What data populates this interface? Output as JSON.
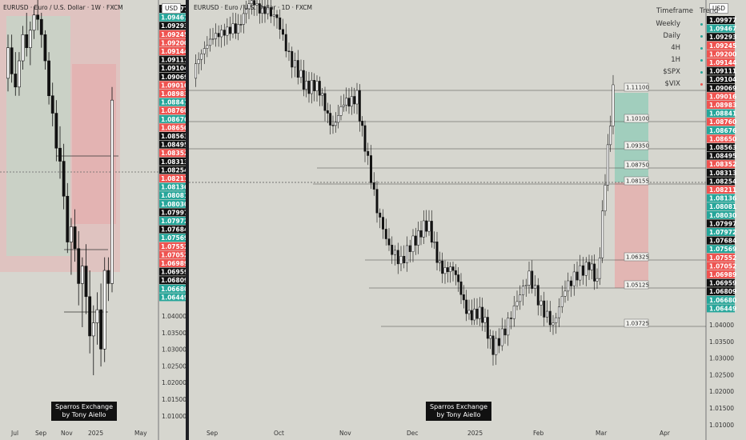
{
  "symbol_left": "EURUSD · Euro / U.S. Dollar · 1W · FXCM",
  "symbol_right": "EURUSD · Euro / U.S. Dollar · 1D · FXCM",
  "currency": "USD",
  "trend_table": {
    "headers": [
      "Timeframe",
      "Trend"
    ],
    "rows": [
      {
        "label": "Weekly",
        "color": "#26a69a"
      },
      {
        "label": "Daily",
        "color": "#26a69a"
      },
      {
        "label": "4H",
        "color": "#26a69a"
      },
      {
        "label": "1H",
        "color": "#26a69a"
      },
      {
        "label": "$SPX",
        "color": "#26a69a"
      },
      {
        "label": "$VIX",
        "color": "#ef5350"
      }
    ]
  },
  "brand": {
    "line1": "Sparros Exchange",
    "line2": "by Tony Aiello"
  },
  "colors": {
    "up": "#26a69a",
    "down": "#ef5350",
    "black": "#111111",
    "bg": "#d6d6cf"
  },
  "chart_data": [
    {
      "type": "candlestick",
      "title": "EURUSD · Euro / U.S. Dollar · 1W · FXCM",
      "x_ticks": [
        "Jul",
        "Sep",
        "Nov",
        "2025",
        "May"
      ],
      "ylim": [
        1.0082,
        1.1009
      ],
      "price_labels": [
        {
          "v": 1.09977,
          "c": "black"
        },
        {
          "v": 1.09467,
          "c": "up"
        },
        {
          "v": 1.09293,
          "c": "black"
        },
        {
          "v": 1.09245,
          "c": "down"
        },
        {
          "v": 1.092,
          "c": "down"
        },
        {
          "v": 1.09144,
          "c": "down"
        },
        {
          "v": 1.09111,
          "c": "black"
        },
        {
          "v": 1.09104,
          "c": "black"
        },
        {
          "v": 1.09069,
          "c": "black"
        },
        {
          "v": 1.09016,
          "c": "down"
        },
        {
          "v": 1.08983,
          "c": "down"
        },
        {
          "v": 1.08841,
          "c": "up"
        },
        {
          "v": 1.0876,
          "c": "down"
        },
        {
          "v": 1.08676,
          "c": "up"
        },
        {
          "v": 1.0865,
          "c": "down"
        },
        {
          "v": 1.08563,
          "c": "black"
        },
        {
          "v": 1.08495,
          "c": "black"
        },
        {
          "v": 1.08352,
          "c": "down"
        },
        {
          "v": 1.08313,
          "c": "black"
        },
        {
          "v": 1.08254,
          "c": "black"
        },
        {
          "v": 1.08211,
          "c": "down"
        },
        {
          "v": 1.08136,
          "c": "up"
        },
        {
          "v": 1.08081,
          "c": "up"
        },
        {
          "v": 1.0803,
          "c": "up"
        },
        {
          "v": 1.07997,
          "c": "black"
        },
        {
          "v": 1.07972,
          "c": "up"
        },
        {
          "v": 1.07684,
          "c": "black"
        },
        {
          "v": 1.07569,
          "c": "up"
        },
        {
          "v": 1.07552,
          "c": "down"
        },
        {
          "v": 1.07052,
          "c": "down"
        },
        {
          "v": 1.06989,
          "c": "down"
        },
        {
          "v": 1.06959,
          "c": "black"
        },
        {
          "v": 1.06809,
          "c": "black"
        },
        {
          "v": 1.0668,
          "c": "up"
        },
        {
          "v": 1.06449,
          "c": "up"
        }
      ],
      "axis_ticks": [
        "1.04000",
        "1.03500",
        "1.03000",
        "1.02500",
        "1.02000",
        "1.01500",
        "1.01000"
      ],
      "candles": [
        [
          1.087,
          1.097,
          1.084,
          1.094
        ],
        [
          1.094,
          1.097,
          1.086,
          1.088
        ],
        [
          1.088,
          1.093,
          1.083,
          1.085
        ],
        [
          1.085,
          1.093,
          1.083,
          1.091
        ],
        [
          1.091,
          1.099,
          1.089,
          1.097
        ],
        [
          1.097,
          1.102,
          1.092,
          1.094
        ],
        [
          1.094,
          1.1,
          1.09,
          1.098
        ],
        [
          1.098,
          1.1035,
          1.096,
          1.1015
        ],
        [
          1.1015,
          1.105,
          1.098,
          1.1005
        ],
        [
          1.1005,
          1.102,
          1.094,
          1.097
        ],
        [
          1.097,
          1.098,
          1.089,
          1.091
        ],
        [
          1.091,
          1.093,
          1.081,
          1.083
        ],
        [
          1.083,
          1.086,
          1.076,
          1.079
        ],
        [
          1.079,
          1.082,
          1.068,
          1.071
        ],
        [
          1.071,
          1.076,
          1.064,
          1.068
        ],
        [
          1.068,
          1.072,
          1.057,
          1.06
        ],
        [
          1.06,
          1.063,
          1.047,
          1.0495
        ],
        [
          1.0495,
          1.055,
          1.042,
          1.053
        ],
        [
          1.053,
          1.057,
          1.045,
          1.048
        ],
        [
          1.048,
          1.052,
          1.035,
          1.04
        ],
        [
          1.04,
          1.046,
          1.03,
          1.044
        ],
        [
          1.044,
          1.049,
          1.033,
          1.037
        ],
        [
          1.037,
          1.043,
          1.024,
          1.028
        ],
        [
          1.028,
          1.035,
          1.019,
          1.031
        ],
        [
          1.031,
          1.038,
          1.026,
          1.034
        ],
        [
          1.034,
          1.04,
          1.021,
          1.025
        ],
        [
          1.025,
          1.046,
          1.022,
          1.043
        ],
        [
          1.043,
          1.046,
          1.036,
          1.04
        ],
        [
          1.04,
          1.085,
          1.038,
          1.082
        ]
      ]
    },
    {
      "type": "candlestick",
      "title": "EURUSD · Euro / U.S. Dollar · 1D · FXCM",
      "x_ticks": [
        "Sep",
        "Oct",
        "Nov",
        "Dec",
        "2025",
        "Feb",
        "Mar",
        "Apr"
      ],
      "ylim": [
        1.0082,
        1.1009
      ],
      "levels": [
        "1.11100",
        "1.10100",
        "1.09350",
        "1.08750",
        "1.08155",
        "1.06325",
        "1.05125",
        "1.03725"
      ],
      "zone_reward_pct": [
        1.08155,
        1.111
      ],
      "zone_risk_pct": [
        1.05125,
        1.08155
      ],
      "axis_ticks": [
        "1.04000",
        "1.03500",
        "1.03000",
        "1.02500",
        "1.02000",
        "1.01500",
        "1.01000"
      ]
    }
  ]
}
